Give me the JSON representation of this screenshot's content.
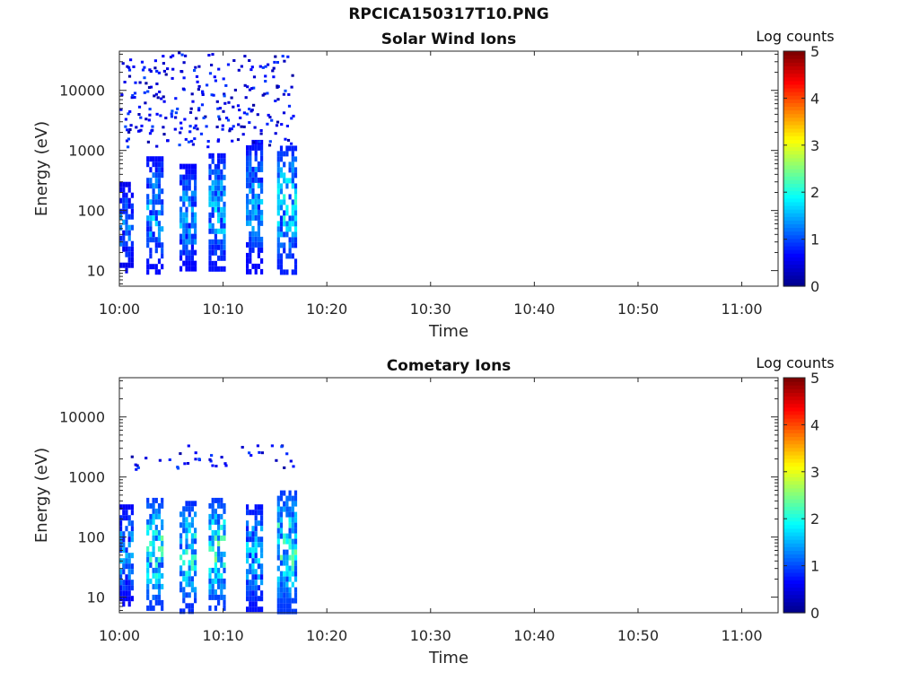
{
  "figure_title": "RPCICA150317T10.PNG",
  "colors": {
    "jet": [
      "#00008f",
      "#0000ff",
      "#0080ff",
      "#00ffff",
      "#80ff80",
      "#ffff00",
      "#ff8000",
      "#ff0000",
      "#800000"
    ]
  },
  "chart_data": [
    {
      "type": "heatmap",
      "title": "Solar Wind Ions",
      "xlabel": "Time",
      "ylabel": "Energy (eV)",
      "x_ticks": [
        "10:00",
        "10:10",
        "10:20",
        "10:30",
        "10:40",
        "10:50",
        "11:00"
      ],
      "x_range_minutes": [
        0,
        63.5
      ],
      "y_scale": "log",
      "y_ticks": [
        "10",
        "100",
        "1000",
        "10000"
      ],
      "y_range": [
        5.5,
        45000
      ],
      "colorbar": {
        "label": "Log counts",
        "ticks": [
          "0",
          "1",
          "2",
          "3",
          "4",
          "5"
        ],
        "range": [
          0,
          5
        ],
        "colormap": "jet"
      },
      "data_time_range_minutes": [
        0,
        17
      ],
      "bursts": [
        {
          "time_min": [
            0.0,
            1.2
          ],
          "energy_ev": [
            10,
            300
          ],
          "peak_log_counts": 1.5
        },
        {
          "time_min": [
            2.6,
            4.0
          ],
          "energy_ev": [
            10,
            800
          ],
          "peak_log_counts": 1.9
        },
        {
          "time_min": [
            5.8,
            7.2
          ],
          "energy_ev": [
            10,
            600
          ],
          "peak_log_counts": 1.8
        },
        {
          "time_min": [
            8.6,
            10.2
          ],
          "energy_ev": [
            10,
            900
          ],
          "peak_log_counts": 2.0
        },
        {
          "time_min": [
            12.2,
            13.8
          ],
          "energy_ev": [
            10,
            1500
          ],
          "peak_log_counts": 1.8
        },
        {
          "time_min": [
            15.2,
            17.0
          ],
          "energy_ev": [
            10,
            1200
          ],
          "peak_log_counts": 2.2
        }
      ]
    },
    {
      "type": "heatmap",
      "title": "Cometary Ions",
      "xlabel": "Time",
      "ylabel": "Energy (eV)",
      "x_ticks": [
        "10:00",
        "10:10",
        "10:20",
        "10:30",
        "10:40",
        "10:50",
        "11:00"
      ],
      "x_range_minutes": [
        0,
        63.5
      ],
      "y_scale": "log",
      "y_ticks": [
        "10",
        "100",
        "1000",
        "10000"
      ],
      "y_range": [
        5.5,
        45000
      ],
      "colorbar": {
        "label": "Log counts",
        "ticks": [
          "0",
          "1",
          "2",
          "3",
          "4",
          "5"
        ],
        "range": [
          0,
          5
        ],
        "colormap": "jet"
      },
      "data_time_range_minutes": [
        0,
        17
      ],
      "bursts": [
        {
          "time_min": [
            0.0,
            1.2
          ],
          "energy_ev": [
            7,
            350
          ],
          "peak_log_counts": 1.7
        },
        {
          "time_min": [
            2.6,
            4.0
          ],
          "energy_ev": [
            6,
            450
          ],
          "peak_log_counts": 2.6
        },
        {
          "time_min": [
            5.8,
            7.2
          ],
          "energy_ev": [
            6,
            400
          ],
          "peak_log_counts": 2.4
        },
        {
          "time_min": [
            8.6,
            10.2
          ],
          "energy_ev": [
            6,
            450
          ],
          "peak_log_counts": 2.6
        },
        {
          "time_min": [
            12.2,
            13.8
          ],
          "energy_ev": [
            6,
            350
          ],
          "peak_log_counts": 2.0
        },
        {
          "time_min": [
            15.2,
            17.0
          ],
          "energy_ev": [
            6,
            600
          ],
          "peak_log_counts": 2.6
        }
      ]
    }
  ]
}
